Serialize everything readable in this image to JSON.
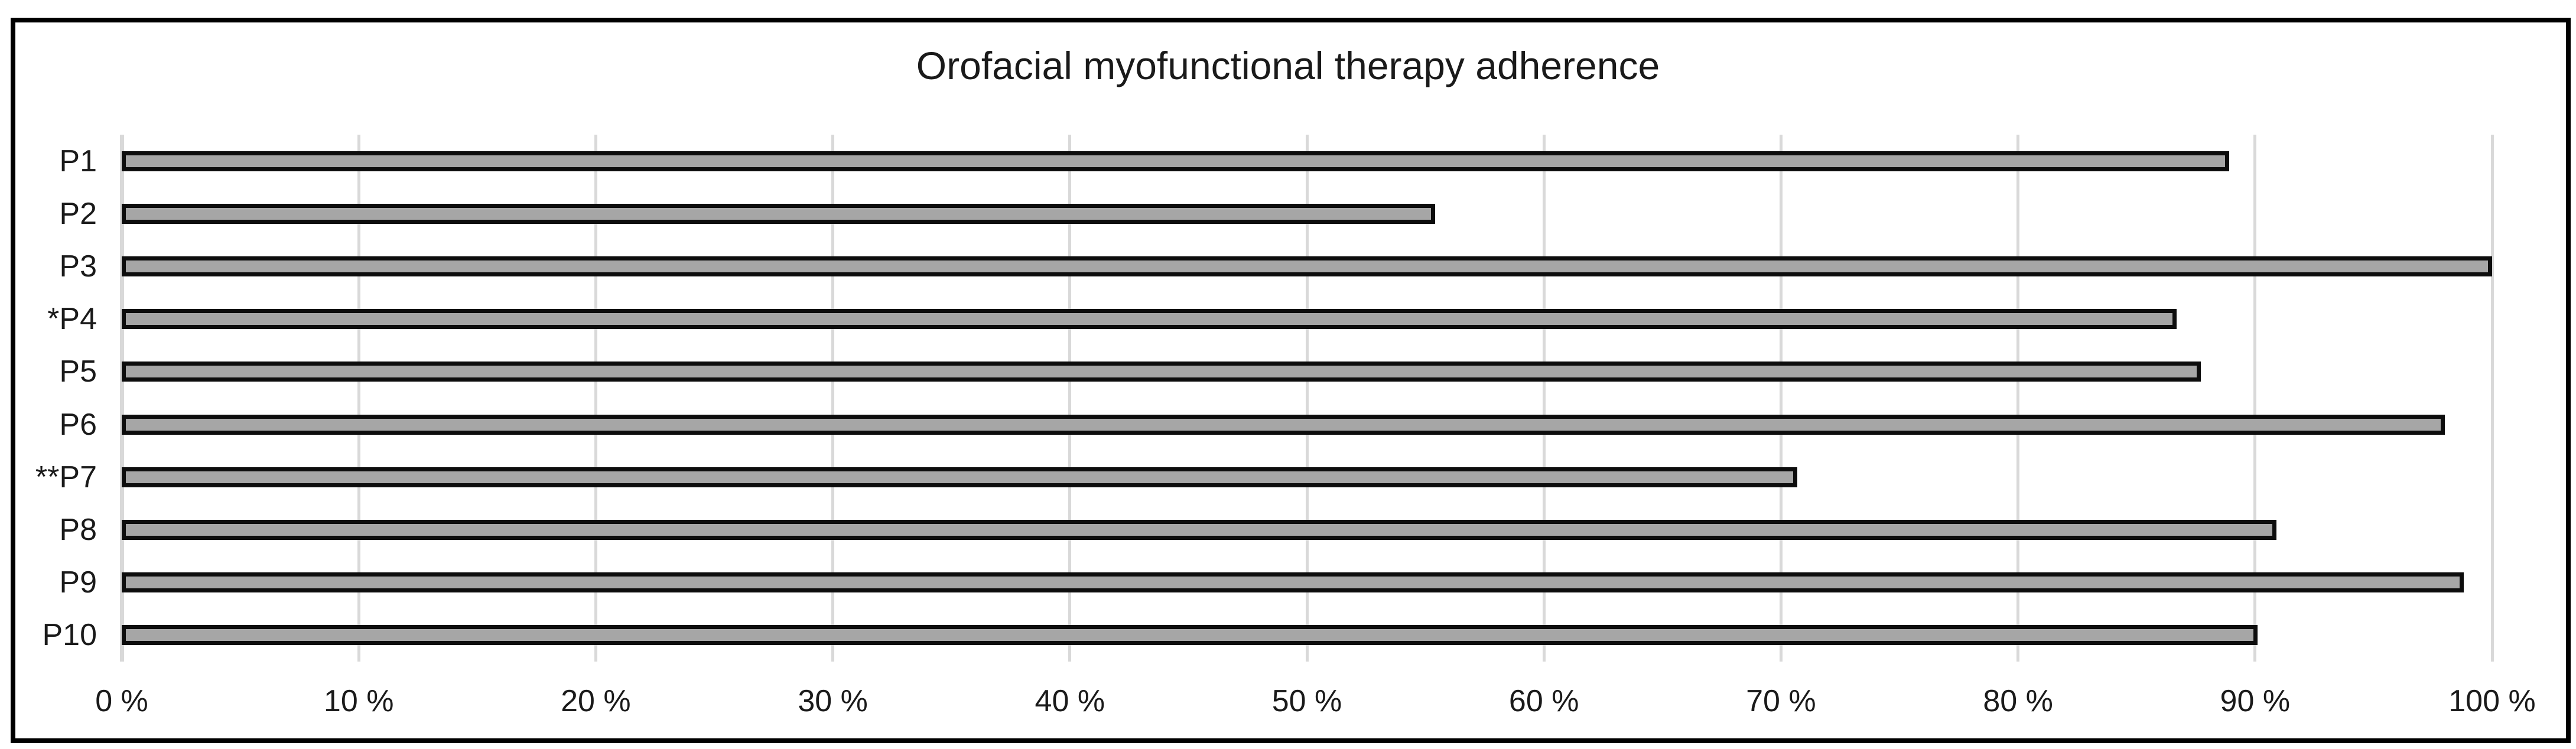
{
  "chart_data": {
    "type": "bar",
    "orientation": "horizontal",
    "title": "Orofacial myofunctional therapy adherence",
    "categories": [
      "P1",
      "P2",
      "P3",
      "*P4",
      "P5",
      "P6",
      "**P7",
      "P8",
      "P9",
      "P10"
    ],
    "values": [
      88.9,
      55.4,
      100,
      86.7,
      87.7,
      98.0,
      70.7,
      90.9,
      98.8,
      90.1
    ],
    "unit": "%",
    "xlabel": "",
    "ylabel": "",
    "xlim": [
      0,
      100
    ],
    "x_tick_step": 10,
    "x_ticks": [
      "0 %",
      "10 %",
      "20 %",
      "30 %",
      "40 %",
      "50 %",
      "60 %",
      "70 %",
      "80 %",
      "90 %",
      "100 %"
    ],
    "grid": true,
    "legend": false,
    "colors": {
      "bar_fill": "#a6a6a6",
      "bar_border": "#0d0d0d",
      "gridline": "#d9d9d9",
      "frame_border": "#000000",
      "text": "#1a1a1a",
      "background": "#ffffff"
    }
  }
}
